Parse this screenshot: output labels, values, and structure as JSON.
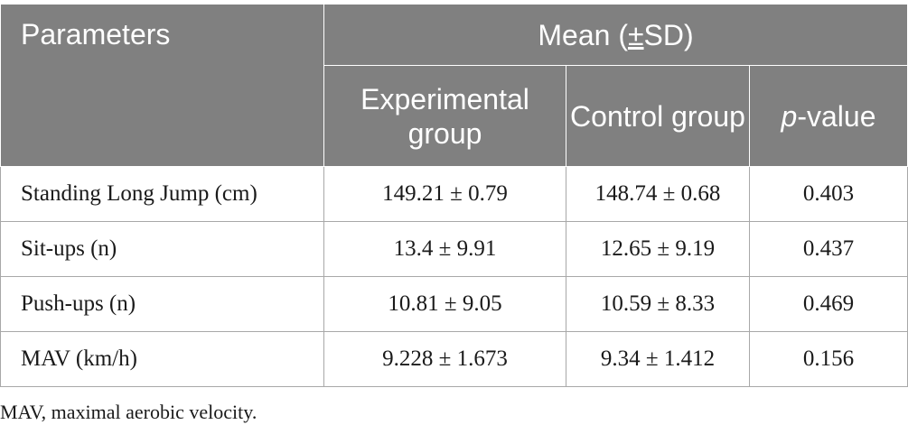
{
  "table": {
    "header": {
      "parameters": "Parameters",
      "mean_prefix": "Mean (",
      "mean_pm": "±",
      "mean_suffix": "SD)",
      "experimental": "Experimental group",
      "control": "Control group",
      "p_italic": "p",
      "p_rest": "-value"
    },
    "rows": [
      {
        "param": "Standing Long Jump (cm)",
        "experimental": "149.21 ± 0.79",
        "control": "148.74 ± 0.68",
        "p": "0.403"
      },
      {
        "param": "Sit-ups (n)",
        "experimental": "13.4 ± 9.91",
        "control": "12.65 ± 9.19",
        "p": "0.437"
      },
      {
        "param": "Push-ups (n)",
        "experimental": "10.81 ± 9.05",
        "control": "10.59 ± 8.33",
        "p": "0.469"
      },
      {
        "param": "MAV (km/h)",
        "experimental": "9.228 ± 1.673",
        "control": "9.34 ± 1.412",
        "p": "0.156"
      }
    ]
  },
  "footnote": "MAV, maximal aerobic velocity.",
  "colors": {
    "header_bg": "#808080",
    "header_text": "#ffffff",
    "border": "#a8a8a8"
  }
}
